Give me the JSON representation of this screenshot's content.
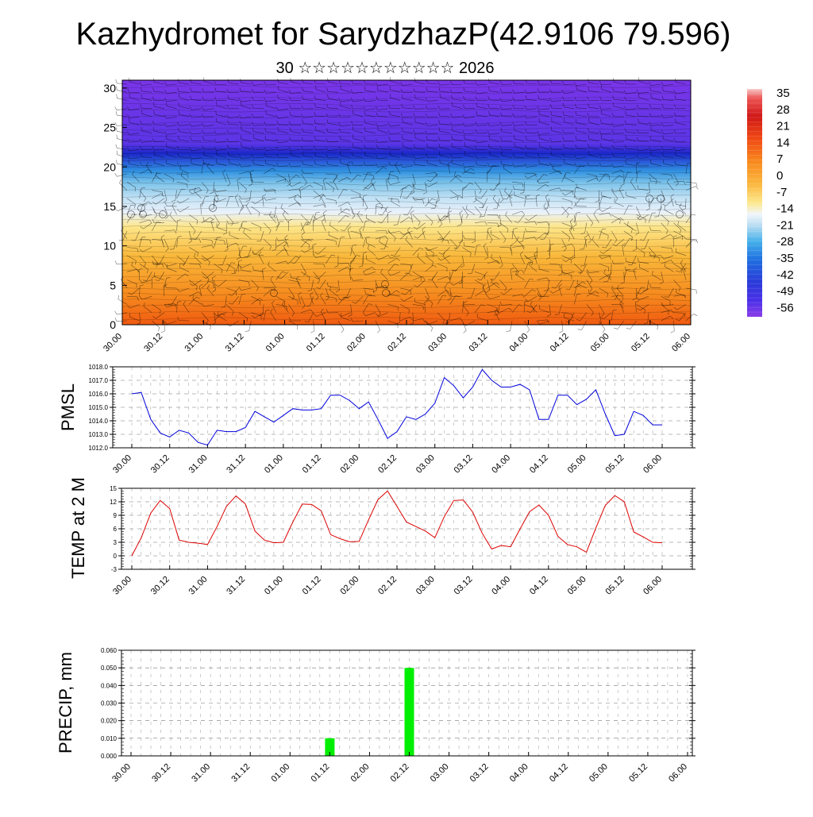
{
  "page": {
    "title": "Kazhydromet for SarydzhazP(42.9106 79.596)",
    "subtitle": "30 ☆☆☆☆☆☆☆☆☆☆☆ 2026"
  },
  "colors": {
    "pmsl_line": "#0000dd",
    "temp_line": "#dd0000",
    "precip_bar": "#00ee00"
  },
  "time_labels": [
    "30.00",
    "30.12",
    "31.00",
    "31.12",
    "01.00",
    "01.12",
    "02.00",
    "02.12",
    "03.00",
    "03.12",
    "04.00",
    "04.12",
    "05.00",
    "05.12",
    "06.00"
  ],
  "chart_data": [
    {
      "type": "heatmap",
      "name": "cross_section",
      "yticks": [
        0,
        5,
        10,
        15,
        20,
        25,
        30
      ],
      "ylim": [
        0,
        31
      ],
      "colorbar_labels": [
        "35",
        "28",
        "21",
        "14",
        "7",
        "0",
        "-7",
        "-14",
        "-21",
        "-28",
        "-35",
        "-42",
        "-49",
        "-56"
      ],
      "colorbar_range": [
        -60,
        38
      ],
      "x_categories_ref": "time_labels"
    },
    {
      "type": "line",
      "name": "pmsl",
      "ylabel": "PMSL",
      "ylim": [
        1012.0,
        1018.0
      ],
      "yticks": [
        "1012.0",
        "1013.0",
        "1014.0",
        "1015.0",
        "1016.0",
        "1017.0",
        "1018.0"
      ],
      "x_categories_ref": "time_labels",
      "values": [
        1016.0,
        1016.1,
        1014.1,
        1013.1,
        1012.8,
        1013.3,
        1013.1,
        1012.4,
        1012.2,
        1013.3,
        1013.2,
        1013.2,
        1013.5,
        1014.7,
        1014.3,
        1013.9,
        1014.4,
        1014.9,
        1014.8,
        1014.8,
        1014.9,
        1015.9,
        1015.9,
        1015.5,
        1014.9,
        1015.4,
        1014.1,
        1012.7,
        1013.2,
        1014.3,
        1014.1,
        1014.5,
        1015.3,
        1017.2,
        1016.6,
        1015.7,
        1016.5,
        1017.8,
        1017.0,
        1016.5,
        1016.5,
        1016.7,
        1016.3,
        1014.1,
        1014.1,
        1015.9,
        1015.9,
        1015.2,
        1015.6,
        1016.3,
        1014.5,
        1012.9,
        1013.0,
        1014.7,
        1014.4,
        1013.7,
        1013.7
      ]
    },
    {
      "type": "line",
      "name": "temp_2m",
      "ylabel": "TEMP at 2 M",
      "ylim": [
        -3,
        15
      ],
      "yticks": [
        "-3",
        "0",
        "3",
        "6",
        "9",
        "12",
        "15"
      ],
      "x_categories_ref": "time_labels",
      "values": [
        0.0,
        4.0,
        9.5,
        12.3,
        10.5,
        3.5,
        3.0,
        2.8,
        2.5,
        6.5,
        11.0,
        13.3,
        11.5,
        5.5,
        3.5,
        2.9,
        3.0,
        7.5,
        11.5,
        11.4,
        10.0,
        4.7,
        3.8,
        3.1,
        3.2,
        8.0,
        12.5,
        14.4,
        11.0,
        7.5,
        6.5,
        5.5,
        4.0,
        8.7,
        12.3,
        12.4,
        9.7,
        5.0,
        1.5,
        2.3,
        2.0,
        6.0,
        9.8,
        11.3,
        9.0,
        4.3,
        2.5,
        2.0,
        0.8,
        6.2,
        11.2,
        13.4,
        12.0,
        5.3,
        4.2,
        3.0,
        2.9
      ]
    },
    {
      "type": "bar",
      "name": "precip",
      "ylabel": "PRECIP, mm",
      "ylim": [
        0,
        0.06
      ],
      "yticks": [
        "0.000",
        "0.010",
        "0.020",
        "0.030",
        "0.040",
        "0.050",
        "0.060"
      ],
      "x_categories_ref": "time_labels",
      "bars": [
        {
          "time_index": 5.0,
          "value": 0.01
        },
        {
          "time_index": 7.0,
          "value": 0.05
        }
      ]
    }
  ]
}
